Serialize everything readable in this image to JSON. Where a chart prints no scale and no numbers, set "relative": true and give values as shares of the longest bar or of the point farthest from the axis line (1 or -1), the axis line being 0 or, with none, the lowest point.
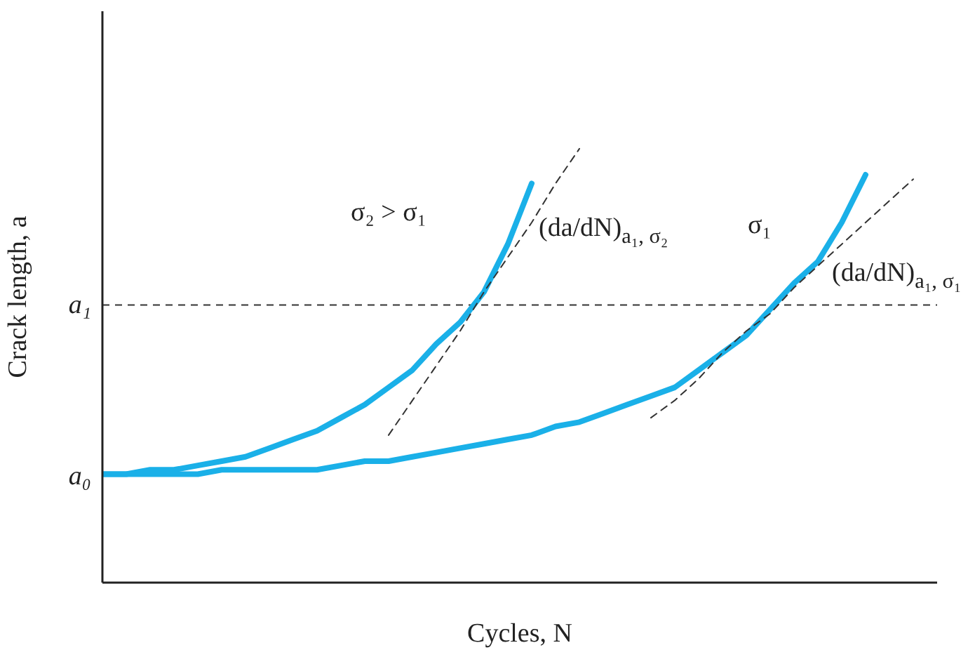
{
  "chart_data": {
    "type": "line",
    "relative": true,
    "xlabel": "Cycles, N",
    "ylabel": "Crack length, a",
    "categories": [
      null,
      null,
      null,
      null,
      null,
      null,
      null,
      null,
      null,
      null,
      null,
      null,
      null,
      null,
      null,
      null,
      null,
      null,
      null,
      null,
      null,
      null,
      null,
      null,
      null,
      null,
      null,
      null,
      null,
      null,
      null,
      null,
      null,
      null,
      null
    ],
    "series": [
      {
        "color": "#1ab0e8",
        "line_style": "solid",
        "values": [
          0.25,
          0.25,
          0.26,
          0.26,
          0.27,
          0.28,
          0.29,
          0.31,
          0.33,
          0.35,
          0.38,
          0.41,
          0.45,
          0.49,
          0.55,
          0.6,
          0.67,
          0.78,
          0.92,
          null,
          null,
          null,
          null,
          null,
          null,
          null,
          null,
          null,
          null,
          null,
          null,
          null,
          null,
          null,
          null
        ]
      },
      {
        "color": "#1ab0e8",
        "line_style": "solid",
        "values": [
          0.25,
          0.25,
          0.25,
          0.25,
          0.25,
          0.26,
          0.26,
          0.26,
          0.26,
          0.26,
          0.27,
          0.28,
          0.28,
          0.29,
          0.3,
          0.31,
          0.32,
          0.33,
          0.34,
          0.36,
          0.37,
          0.39,
          0.41,
          0.43,
          0.45,
          0.49,
          0.53,
          0.57,
          0.63,
          0.69,
          0.74,
          0.83,
          0.94,
          null,
          null
        ]
      },
      {
        "color": "#333333",
        "line_style": "dashed",
        "values": [
          null,
          null,
          null,
          null,
          null,
          null,
          null,
          null,
          null,
          null,
          null,
          null,
          0.34,
          0.42,
          0.5,
          0.58,
          0.67,
          0.75,
          0.83,
          0.92,
          1,
          null,
          null,
          null,
          null,
          null,
          null,
          null,
          null,
          null,
          null,
          null,
          null,
          null,
          null
        ]
      },
      {
        "color": "#333333",
        "line_style": "dashed",
        "values": [
          null,
          null,
          null,
          null,
          null,
          null,
          null,
          null,
          null,
          null,
          null,
          null,
          null,
          null,
          null,
          null,
          null,
          null,
          null,
          null,
          null,
          null,
          null,
          0.38,
          0.42,
          0.47,
          0.53,
          0.58,
          0.62,
          0.68,
          0.73,
          0.78,
          0.83,
          0.88,
          0.93
        ]
      }
    ],
    "ref_lines": [
      {
        "axis": "y",
        "value": 0.64,
        "label": "a₁",
        "color": "#333333",
        "line_style": "dashed"
      }
    ],
    "annotations": [
      "a₀",
      "σ₂ > σ₁",
      "(da/dN)$_{a₁, σ₂}$",
      "σ₁",
      "(da/dN)$_{a₁, σ₁}$"
    ],
    "grid": false,
    "marker": "none"
  }
}
